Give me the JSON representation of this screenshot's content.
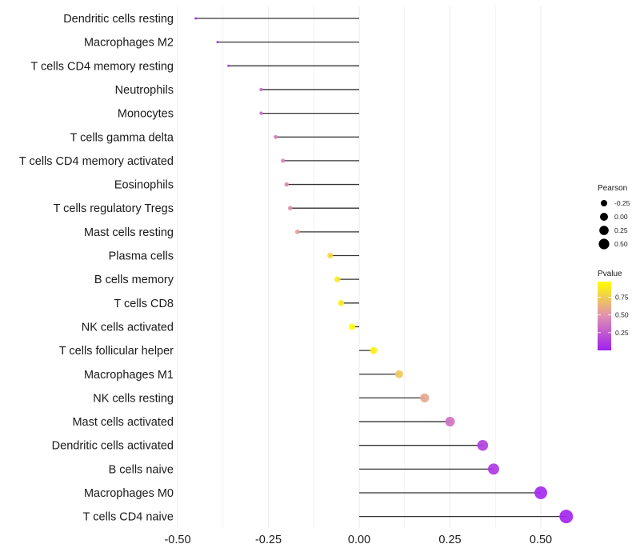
{
  "chart_data": {
    "type": "lollipop",
    "title": "",
    "xlabel": "",
    "ylabel": "",
    "xlim": [
      -0.5,
      0.6
    ],
    "xticks": [
      -0.5,
      -0.25,
      0.0,
      0.25,
      0.5
    ],
    "xtick_labels": [
      "-0.50",
      "-0.25",
      "0.00",
      "0.25",
      "0.50"
    ],
    "grid": true,
    "categories": [
      "Dendritic cells resting",
      "Macrophages M2",
      "T cells CD4 memory resting",
      "Neutrophils",
      "Monocytes",
      "T cells gamma delta",
      "T cells CD4 memory activated",
      "Eosinophils",
      "T cells regulatory  Tregs ",
      "Mast cells resting",
      "Plasma cells",
      "B cells memory",
      "T cells CD8",
      "NK cells activated",
      "T cells follicular helper",
      "Macrophages M1",
      "NK cells resting",
      "Mast cells activated",
      "Dendritic cells activated",
      "B cells naive",
      "Macrophages M0",
      "T cells CD4 naive"
    ],
    "pearson": [
      -0.45,
      -0.39,
      -0.36,
      -0.27,
      -0.27,
      -0.23,
      -0.21,
      -0.2,
      -0.19,
      -0.17,
      -0.08,
      -0.06,
      -0.05,
      -0.02,
      0.04,
      0.11,
      0.18,
      0.25,
      0.34,
      0.37,
      0.5,
      0.57
    ],
    "pvalue": [
      0.01,
      0.05,
      0.08,
      0.32,
      0.33,
      0.4,
      0.43,
      0.46,
      0.48,
      0.55,
      0.8,
      0.88,
      0.89,
      0.96,
      0.9,
      0.72,
      0.58,
      0.35,
      0.12,
      0.09,
      0.02,
      0.01
    ],
    "legend": {
      "size": {
        "title": "Pearson",
        "labels": [
          "-0.25",
          "0.00",
          "0.25",
          "0.50"
        ],
        "values": [
          -0.25,
          0.0,
          0.25,
          0.5
        ]
      },
      "color": {
        "title": "Pvalue",
        "labels": [
          "0.75",
          "0.50",
          "0.25"
        ],
        "values": [
          0.75,
          0.5,
          0.25
        ],
        "range": [
          0.0,
          0.97
        ],
        "low_color": "#a020f0",
        "mid_color": "#e080a0",
        "high_color": "#ffff00"
      },
      "placement": "right"
    }
  }
}
